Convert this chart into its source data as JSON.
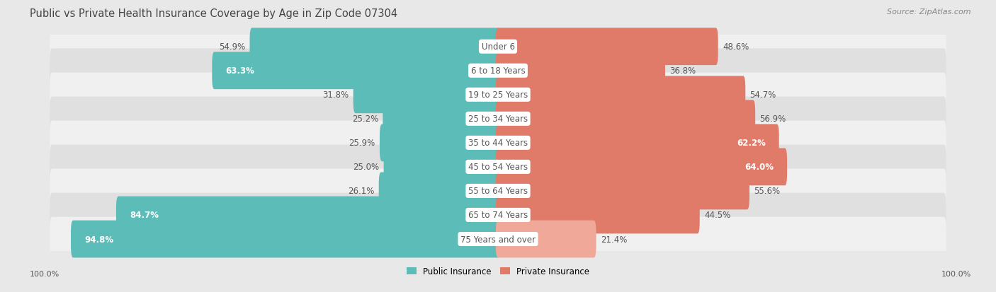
{
  "title": "Public vs Private Health Insurance Coverage by Age in Zip Code 07304",
  "source": "Source: ZipAtlas.com",
  "categories": [
    "Under 6",
    "6 to 18 Years",
    "19 to 25 Years",
    "25 to 34 Years",
    "35 to 44 Years",
    "45 to 54 Years",
    "55 to 64 Years",
    "65 to 74 Years",
    "75 Years and over"
  ],
  "public_values": [
    54.9,
    63.3,
    31.8,
    25.2,
    25.9,
    25.0,
    26.1,
    84.7,
    94.8
  ],
  "private_values": [
    48.6,
    36.8,
    54.7,
    56.9,
    62.2,
    64.0,
    55.6,
    44.5,
    21.4
  ],
  "public_color": "#5bbcb8",
  "private_color": "#e07b6a",
  "private_color_light": "#f0a898",
  "bg_color": "#e8e8e8",
  "row_bg_odd": "#f0f0f0",
  "row_bg_even": "#e0e0e0",
  "title_color": "#444444",
  "label_color": "#555555",
  "cat_label_color": "#555555",
  "white_label_color": "#ffffff",
  "max_value": 100.0,
  "bar_height": 0.55,
  "title_fontsize": 10.5,
  "label_fontsize": 8.5,
  "cat_fontsize": 8.5,
  "tick_fontsize": 8,
  "source_fontsize": 8,
  "inside_label_threshold": 60.0
}
